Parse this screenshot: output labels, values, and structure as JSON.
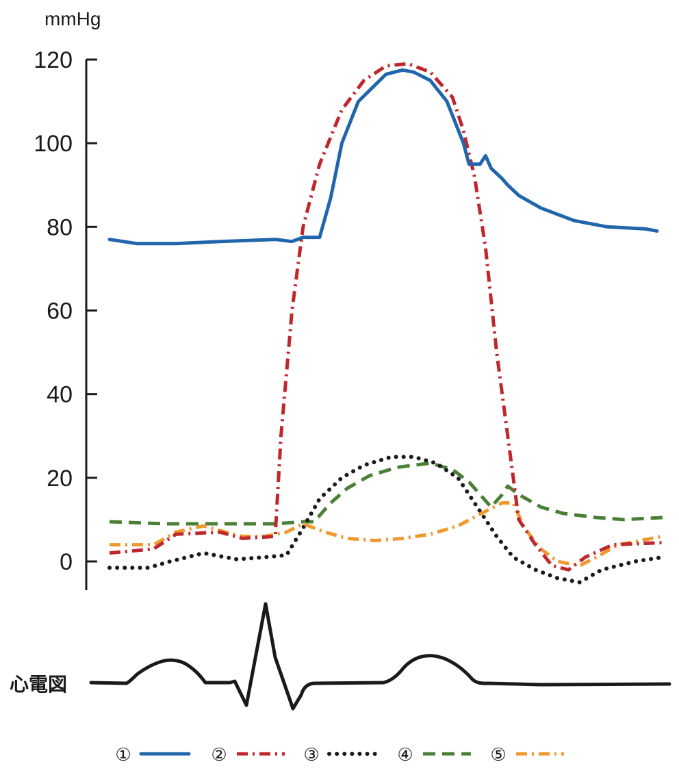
{
  "chart_data": {
    "type": "line",
    "ylabel": "mmHg",
    "ylim": [
      0,
      120
    ],
    "yticks": [
      "120",
      "100",
      "80",
      "60",
      "40",
      "20",
      "0"
    ],
    "ecg_label": "心電図",
    "x_range": [
      0,
      100
    ],
    "series": [
      {
        "name": "①",
        "color": "#2166ac",
        "style": "solid",
        "points": [
          [
            0,
            77
          ],
          [
            5,
            76
          ],
          [
            12,
            76
          ],
          [
            20,
            76.5
          ],
          [
            30,
            77
          ],
          [
            33,
            76.5
          ],
          [
            35,
            77.5
          ],
          [
            38,
            77.5
          ],
          [
            40,
            87
          ],
          [
            42,
            100
          ],
          [
            45,
            110
          ],
          [
            50,
            116.5
          ],
          [
            53,
            117.5
          ],
          [
            55,
            117
          ],
          [
            58,
            115
          ],
          [
            61,
            110
          ],
          [
            64,
            100
          ],
          [
            65,
            95
          ],
          [
            67,
            95
          ],
          [
            68,
            97
          ],
          [
            69,
            94
          ],
          [
            71,
            91.5
          ],
          [
            72,
            90
          ],
          [
            74,
            87.5
          ],
          [
            78,
            84.5
          ],
          [
            84,
            81.5
          ],
          [
            90,
            80
          ],
          [
            97,
            79.5
          ],
          [
            99,
            79
          ]
        ]
      },
      {
        "name": "②",
        "color": "#c0272d",
        "style": "dashdot",
        "points": [
          [
            0,
            2
          ],
          [
            8,
            3
          ],
          [
            12,
            6.5
          ],
          [
            20,
            7
          ],
          [
            24,
            5.5
          ],
          [
            30,
            6
          ],
          [
            30,
            7
          ],
          [
            31,
            30
          ],
          [
            33,
            60
          ],
          [
            35,
            80
          ],
          [
            38,
            95
          ],
          [
            42,
            108
          ],
          [
            46,
            115
          ],
          [
            50,
            118.5
          ],
          [
            54,
            119
          ],
          [
            58,
            117
          ],
          [
            62,
            111
          ],
          [
            64,
            103
          ],
          [
            66,
            92
          ],
          [
            68,
            75
          ],
          [
            70,
            50
          ],
          [
            72,
            30
          ],
          [
            74,
            10
          ],
          [
            77,
            4
          ],
          [
            80,
            -1
          ],
          [
            83,
            -2
          ],
          [
            86,
            1
          ],
          [
            91,
            4
          ],
          [
            100,
            4.5
          ]
        ]
      },
      {
        "name": "③",
        "color": "#1a1a1a",
        "style": "dotted",
        "points": [
          [
            0,
            -1.5
          ],
          [
            7,
            -1.5
          ],
          [
            11,
            0
          ],
          [
            17,
            2
          ],
          [
            23,
            0.5
          ],
          [
            28,
            1
          ],
          [
            32,
            1.5
          ],
          [
            35,
            8
          ],
          [
            38,
            15
          ],
          [
            42,
            20
          ],
          [
            46,
            23
          ],
          [
            51,
            25
          ],
          [
            55,
            25
          ],
          [
            59,
            23.5
          ],
          [
            63,
            20
          ],
          [
            67,
            12
          ],
          [
            70,
            6
          ],
          [
            73,
            1
          ],
          [
            77,
            -2
          ],
          [
            81,
            -4
          ],
          [
            85,
            -5
          ],
          [
            89,
            -2
          ],
          [
            95,
            0
          ],
          [
            100,
            1
          ]
        ]
      },
      {
        "name": "④",
        "color": "#4a8035",
        "style": "dashed",
        "points": [
          [
            0,
            9.5
          ],
          [
            10,
            9
          ],
          [
            20,
            9
          ],
          [
            30,
            9
          ],
          [
            35,
            9.5
          ],
          [
            37,
            9.5
          ],
          [
            38,
            11
          ],
          [
            40,
            14
          ],
          [
            43,
            17.5
          ],
          [
            47,
            20.5
          ],
          [
            52,
            22.5
          ],
          [
            58,
            23.5
          ],
          [
            62,
            22
          ],
          [
            65,
            19
          ],
          [
            67,
            16
          ],
          [
            69,
            13
          ],
          [
            71,
            16
          ],
          [
            72,
            18
          ],
          [
            74,
            16
          ],
          [
            78,
            13
          ],
          [
            82,
            11.5
          ],
          [
            88,
            10.5
          ],
          [
            93,
            10
          ],
          [
            100,
            10.5
          ]
        ]
      },
      {
        "name": "⑤",
        "color": "#f0982d",
        "style": "dashdot",
        "points": [
          [
            0,
            4
          ],
          [
            8,
            4
          ],
          [
            12,
            7
          ],
          [
            17,
            8.5
          ],
          [
            21,
            7
          ],
          [
            24,
            6
          ],
          [
            28,
            6
          ],
          [
            32,
            7
          ],
          [
            35,
            9
          ],
          [
            39,
            7
          ],
          [
            43,
            5.5
          ],
          [
            48,
            5
          ],
          [
            53,
            5.5
          ],
          [
            58,
            6.5
          ],
          [
            63,
            8.5
          ],
          [
            68,
            12
          ],
          [
            71,
            14
          ],
          [
            73,
            14
          ],
          [
            75,
            8
          ],
          [
            78,
            3
          ],
          [
            81,
            0
          ],
          [
            85,
            -1
          ],
          [
            88,
            1
          ],
          [
            92,
            4
          ],
          [
            96,
            5
          ],
          [
            100,
            6
          ]
        ]
      }
    ],
    "legend": [
      "①",
      "②",
      "③",
      "④",
      "⑤"
    ]
  },
  "colors": {
    "axis": "#1a1a1a",
    "ecg": "#1a1a1a"
  }
}
